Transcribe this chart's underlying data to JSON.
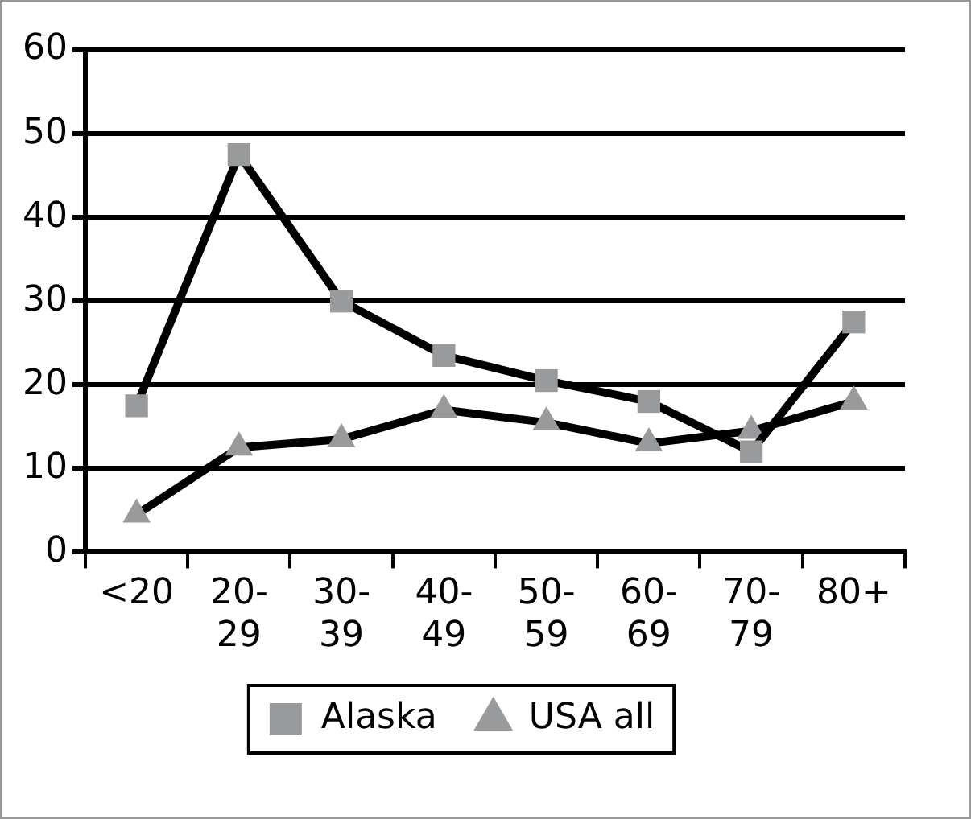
{
  "chart_data": {
    "type": "line",
    "categories": [
      "<20",
      "20-29",
      "30-39",
      "40-49",
      "50-59",
      "60-69",
      "70-79",
      "80+"
    ],
    "series": [
      {
        "name": "Alaska",
        "color": "#000000",
        "marker": "square",
        "values": [
          17.5,
          47.5,
          30,
          23.5,
          20.5,
          18,
          12,
          27.5
        ]
      },
      {
        "name": "USA all",
        "color": "#000000",
        "marker": "triangle",
        "values": [
          4.5,
          12.5,
          13.5,
          17,
          15.5,
          13,
          14.5,
          18
        ]
      }
    ],
    "ylim": [
      0,
      60
    ],
    "yticks": [
      0,
      10,
      20,
      30,
      40,
      50,
      60
    ],
    "grid": "y",
    "legend": "bottom"
  }
}
